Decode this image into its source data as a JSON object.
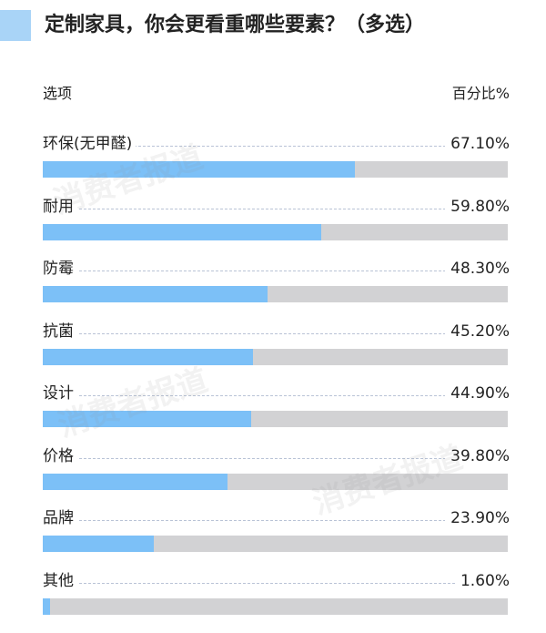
{
  "title": "定制家具，你会更看重哪些要素？（多选）",
  "header": {
    "left": "选项",
    "right": "百分比%"
  },
  "watermark_text": "消费者报道",
  "colors": {
    "accent": "#a9d4f7",
    "bar": "#7cc0f7",
    "track": "#d2d2d4"
  },
  "chart_data": {
    "type": "bar",
    "orientation": "horizontal",
    "title": "定制家具，你会更看重哪些要素？（多选）",
    "xlabel": "选项",
    "ylabel": "百分比%",
    "ylim": [
      0,
      100
    ],
    "grid": false,
    "categories": [
      "环保(无甲醛)",
      "耐用",
      "防霉",
      "抗菌",
      "设计",
      "价格",
      "品牌",
      "其他"
    ],
    "values": [
      67.1,
      59.8,
      48.3,
      45.2,
      44.9,
      39.8,
      23.9,
      1.6
    ],
    "value_labels": [
      "67.10%",
      "59.80%",
      "48.30%",
      "45.20%",
      "44.90%",
      "39.80%",
      "23.90%",
      "1.60%"
    ]
  }
}
